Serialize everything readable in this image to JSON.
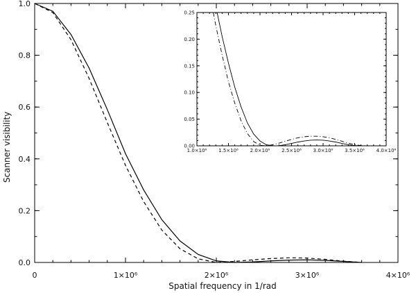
{
  "chart_data": [
    {
      "type": "line",
      "xlabel": "Spatial frequency in 1/rad",
      "ylabel": "Scanner visibility",
      "xlim": [
        0,
        4000000
      ],
      "ylim": [
        0,
        1.0
      ],
      "x_ticks": [
        0,
        1000000,
        2000000,
        3000000,
        4000000
      ],
      "x_tick_labels": [
        "0",
        "1×10⁶",
        "2×10⁶",
        "3×10⁶",
        "4×10⁶"
      ],
      "y_ticks": [
        0,
        0.2,
        0.4,
        0.6,
        0.8,
        1.0
      ],
      "y_tick_labels": [
        "0.0",
        "0.2",
        "0.4",
        "0.6",
        "0.8",
        "1.0"
      ],
      "grid": false,
      "legend": "none",
      "series": [
        {
          "style": "solid",
          "color": "#000000",
          "x": [
            0,
            200000,
            400000,
            600000,
            800000,
            1000000,
            1200000,
            1400000,
            1600000,
            1800000,
            2000000,
            2200000,
            2400000,
            2600000,
            2800000,
            3000000,
            3200000,
            3400000,
            3600000
          ],
          "y": [
            1.0,
            0.97,
            0.88,
            0.75,
            0.59,
            0.42,
            0.28,
            0.165,
            0.083,
            0.031,
            0.006,
            0.0,
            0.002,
            0.006,
            0.009,
            0.01,
            0.008,
            0.004,
            0.0
          ]
        },
        {
          "style": "dashed",
          "color": "#000000",
          "x": [
            0,
            200000,
            400000,
            600000,
            800000,
            1000000,
            1200000,
            1400000,
            1600000,
            1800000,
            2000000,
            2200000,
            2400000,
            2600000,
            2800000,
            3000000,
            3200000,
            3400000,
            3600000
          ],
          "y": [
            1.0,
            0.965,
            0.86,
            0.71,
            0.54,
            0.375,
            0.235,
            0.125,
            0.053,
            0.014,
            0.0,
            0.004,
            0.01,
            0.015,
            0.018,
            0.017,
            0.012,
            0.005,
            0.0
          ]
        }
      ]
    },
    {
      "type": "line",
      "inset": true,
      "xlim": [
        1000000,
        4000000
      ],
      "ylim": [
        0,
        0.25
      ],
      "x_ticks": [
        1000000,
        1500000,
        2000000,
        2500000,
        3000000,
        3500000,
        4000000
      ],
      "x_tick_labels": [
        "1.0×10⁶",
        "1.5×10⁶",
        "2.0×10⁶",
        "2.5×10⁶",
        "3.0×10⁶",
        "3.5×10⁶",
        "4.0×10⁶"
      ],
      "y_ticks": [
        0,
        0.05,
        0.1,
        0.15,
        0.2,
        0.25
      ],
      "y_tick_labels": [
        "0.00",
        "0.05",
        "0.10",
        "0.15",
        "0.20",
        "0.25"
      ],
      "grid": false,
      "series": [
        {
          "style": "solid",
          "color": "#000000",
          "x": [
            1320000,
            1400000,
            1500000,
            1600000,
            1700000,
            1800000,
            1900000,
            2000000,
            2100000,
            2200000,
            2300000,
            2400000,
            2500000,
            2600000,
            2700000,
            2800000,
            2900000,
            3000000,
            3100000,
            3200000,
            3300000,
            3400000,
            3500000,
            3600000,
            3700000,
            3800000
          ],
          "y": [
            0.25,
            0.205,
            0.155,
            0.11,
            0.073,
            0.043,
            0.022,
            0.009,
            0.002,
            0.0,
            0.0003,
            0.002,
            0.0045,
            0.007,
            0.009,
            0.0105,
            0.011,
            0.0105,
            0.009,
            0.007,
            0.0045,
            0.002,
            0.0005,
            0.0,
            0.0,
            0.0
          ]
        },
        {
          "style": "dash-dot",
          "color": "#000000",
          "x": [
            1260000,
            1300000,
            1400000,
            1500000,
            1600000,
            1700000,
            1800000,
            1900000,
            2000000,
            2100000,
            2200000,
            2300000,
            2400000,
            2500000,
            2600000,
            2700000,
            2800000,
            2900000,
            3000000,
            3100000,
            3200000,
            3300000,
            3400000,
            3500000,
            3600000,
            3700000,
            3800000
          ],
          "y": [
            0.25,
            0.225,
            0.17,
            0.12,
            0.08,
            0.047,
            0.023,
            0.008,
            0.001,
            0.0,
            0.002,
            0.005,
            0.0085,
            0.012,
            0.015,
            0.017,
            0.018,
            0.018,
            0.017,
            0.015,
            0.012,
            0.0085,
            0.005,
            0.002,
            0.0005,
            0.0,
            0.0
          ]
        }
      ]
    }
  ]
}
